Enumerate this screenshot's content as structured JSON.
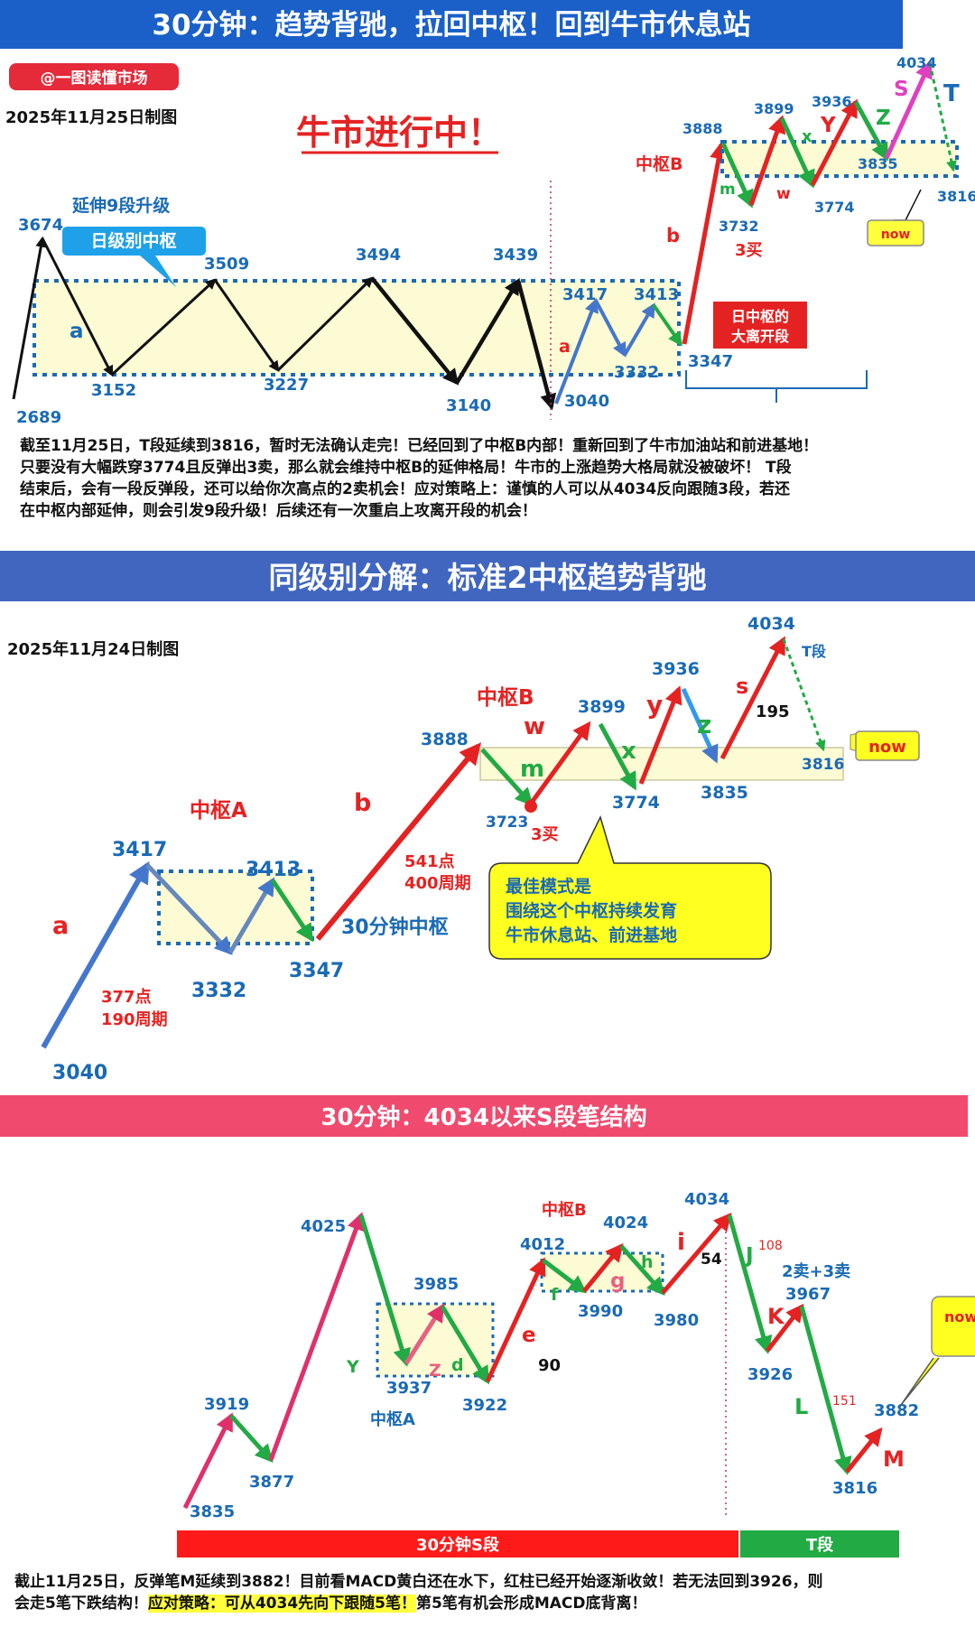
{
  "panel1": {
    "title": "30分钟：趋势背驰，拉回中枢！回到牛市休息站",
    "watermark": "@一图读懂市场",
    "date": "2025年11月25日制图",
    "headline": "牛市进行中！",
    "notes": {
      "extend9": "延伸9段升级",
      "daily_pivot": "日级别中枢",
      "pivotB": "中枢B",
      "buy3": "3买",
      "breakout_l1": "日中枢的",
      "breakout_l2": "大离开段",
      "now": "now"
    },
    "paragraph": [
      "截至11月25日，T段延续到3816，暂时无法确认走完！已经回到了中枢B内部！重新回到了牛市加油站和前进基地！",
      "只要没有大幅跌穿3774且反弹出3卖，那么就会维持中枢B的延伸格局！牛市的上涨趋势大格局就没被破坏！ T段",
      "结束后，会有一段反弹段，还可以给你次高点的2卖机会！应对策略上：谨慎的人可以从4034反向跟随3段，若还",
      "在中枢内部延伸，则会引发9段升级！后续还有一次重启上攻离开段的机会！"
    ]
  },
  "panel2": {
    "title": "同级别分解：标准2中枢趋势背驰",
    "date": "2025年11月24日制图",
    "notes": {
      "pivotA": "中枢A",
      "pivotB": "中枢B",
      "a_pts": "377点",
      "a_bars": "190周期",
      "b_pts": "541点",
      "b_bars": "400周期",
      "pivot30": "30分钟中枢",
      "buy3": "3买",
      "callout_l1": "最佳模式是",
      "callout_l2": "围绕这个中枢持续发育",
      "callout_l3": "牛市休息站、前进基地",
      "now": "now",
      "t_seg": "T段",
      "s_count": "195"
    }
  },
  "panel3": {
    "title": "30分钟：4034以来S段笔结构",
    "notes": {
      "pivotA": "中枢A",
      "pivotB": "中枢B",
      "sell23": "2卖+3卖",
      "n90": "90",
      "n54": "54",
      "n108": "108",
      "n151": "151",
      "now": "now",
      "bar_s": "30分钟S段",
      "bar_t": "T段"
    },
    "paragraph_l1": "截止11月25日，反弹笔M延续到3882！目前看MACD黄白还在水下，红柱已经开始逐渐收敛！若无法回到3926，则",
    "paragraph_l2a": "会走5笔下跌结构！",
    "paragraph_l2b": "应对策略：可从4034先向下跟随5笔！",
    "paragraph_l2c": "第5笔有机会形成MACD底背离！"
  },
  "colors": {
    "title_blue": "#1a60c8",
    "title_pink": "#f04a6e",
    "red": "#e52222",
    "green": "#22aa44",
    "blue": "#4477cc",
    "pink": "#e0306a",
    "yellow_box": "#fdfbd4",
    "label_blue": "#1a6ab5"
  },
  "chart_data": [
    {
      "type": "line",
      "title": "30分钟：趋势背驰，拉回中枢！回到牛市休息站",
      "series": [
        {
          "name": "日级别 a",
          "values": [
            2689,
            3674,
            3152,
            3509,
            3227,
            3494,
            3140,
            3439,
            3040
          ]
        },
        {
          "name": "a",
          "values": [
            3040,
            3417,
            3332,
            3413,
            3347
          ]
        },
        {
          "name": "b",
          "values": [
            3347,
            3888
          ]
        },
        {
          "name": "中枢B",
          "values": [
            3888,
            3732,
            3899,
            3774,
            3936,
            3835,
            4034,
            3816
          ]
        }
      ],
      "segment_labels": [
        "a",
        "b",
        "m",
        "w",
        "x",
        "Y",
        "Z",
        "S",
        "T"
      ],
      "pivots": [
        {
          "name": "日级别中枢",
          "range": [
            3152,
            3439
          ]
        },
        {
          "name": "中枢B",
          "range": [
            3835,
            3888
          ]
        }
      ]
    },
    {
      "type": "line",
      "title": "同级别分解：标准2中枢趋势背驰",
      "values": [
        3040,
        3417,
        3332,
        3413,
        3347,
        3888,
        3723,
        3899,
        3774,
        3936,
        3835,
        4034,
        3816
      ],
      "segment_labels": [
        "a",
        "b",
        "m",
        "w",
        "x",
        "y",
        "z",
        "s",
        "T段"
      ],
      "pivots": [
        {
          "name": "中枢A",
          "range": [
            3347,
            3413
          ]
        },
        {
          "name": "中枢B",
          "range": [
            3774,
            3888
          ]
        }
      ]
    },
    {
      "type": "line",
      "title": "30分钟：4034以来S段笔结构",
      "values": [
        3835,
        3919,
        3877,
        4025,
        3937,
        3985,
        3922,
        4012,
        3990,
        4024,
        3980,
        4034,
        3926,
        3967,
        3816,
        3882
      ],
      "segment_labels": [
        "Y",
        "Z",
        "d",
        "e",
        "f",
        "g",
        "h",
        "i",
        "J",
        "K",
        "L",
        "M"
      ],
      "pivots": [
        {
          "name": "中枢A",
          "range": [
            3937,
            3985
          ]
        },
        {
          "name": "中枢B",
          "range": [
            3990,
            4012
          ]
        }
      ]
    }
  ]
}
